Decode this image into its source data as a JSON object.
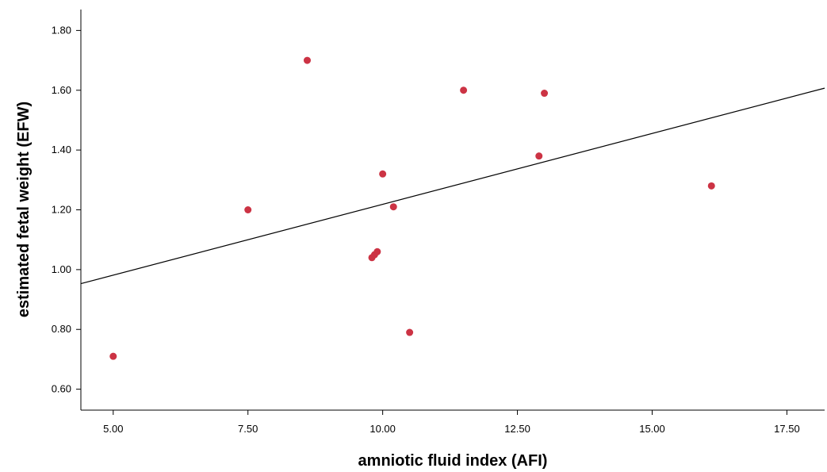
{
  "chart_data": {
    "type": "scatter",
    "xlabel": "amniotic fluid index (AFI)",
    "ylabel": "estimated fetal weight (EFW)",
    "xlim": [
      4.4,
      18.2
    ],
    "ylim": [
      0.53,
      1.87
    ],
    "x_ticks": [
      "5.00",
      "7.50",
      "10.00",
      "12.50",
      "15.00",
      "17.50"
    ],
    "y_ticks": [
      "0.60",
      "0.80",
      "1.00",
      "1.20",
      "1.40",
      "1.60",
      "1.80"
    ],
    "grid": false,
    "points": [
      {
        "x": 5.0,
        "y": 0.71
      },
      {
        "x": 7.5,
        "y": 1.2
      },
      {
        "x": 8.6,
        "y": 1.7
      },
      {
        "x": 9.8,
        "y": 1.04
      },
      {
        "x": 9.85,
        "y": 1.05
      },
      {
        "x": 9.9,
        "y": 1.06
      },
      {
        "x": 10.0,
        "y": 1.32
      },
      {
        "x": 10.2,
        "y": 1.21
      },
      {
        "x": 10.5,
        "y": 0.79
      },
      {
        "x": 11.5,
        "y": 1.6
      },
      {
        "x": 12.9,
        "y": 1.38
      },
      {
        "x": 13.0,
        "y": 1.59
      },
      {
        "x": 16.1,
        "y": 1.28
      }
    ],
    "fit_line": {
      "x": [
        4.4,
        18.2
      ],
      "y": [
        0.953,
        1.607
      ]
    },
    "colors": {
      "points": "#cc3344",
      "line": "#000000",
      "axes": "#000000"
    }
  }
}
